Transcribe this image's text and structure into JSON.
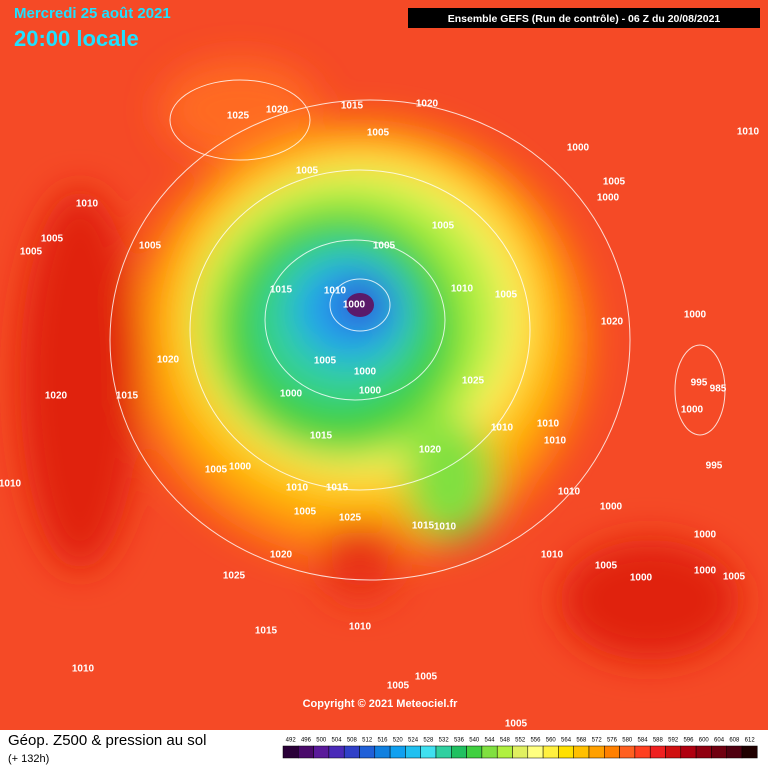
{
  "header": {
    "date": "Mercredi 25 août 2021",
    "time": "20:00 locale",
    "run": "Ensemble GEFS  (Run de contrôle)  -  06 Z du 20/08/2021"
  },
  "copyright": "Copyright © 2021 Meteociel.fr",
  "footer": {
    "title": "Géop. Z500 & pression au sol",
    "lead": "(+ 132h)"
  },
  "legend": {
    "values": [
      492,
      496,
      500,
      504,
      508,
      512,
      516,
      520,
      524,
      528,
      532,
      536,
      540,
      544,
      548,
      552,
      556,
      560,
      564,
      568,
      572,
      576,
      580,
      584,
      588,
      592,
      596,
      600,
      604,
      608,
      612
    ],
    "colors": [
      "#2a0038",
      "#4a0a6a",
      "#5a1a9a",
      "#4a2ab8",
      "#3040c8",
      "#2060d8",
      "#1080e0",
      "#10a0f0",
      "#20c0f0",
      "#40e0f0",
      "#30d0a0",
      "#20c060",
      "#40d040",
      "#80e040",
      "#b0f040",
      "#e0f060",
      "#ffff80",
      "#fff040",
      "#ffe000",
      "#ffc000",
      "#ffa000",
      "#ff8000",
      "#ff6020",
      "#ff4020",
      "#f02020",
      "#d01010",
      "#b00010",
      "#900010",
      "#700010",
      "#500010",
      "#200000"
    ]
  },
  "isobars": [
    "1025",
    "1020",
    "1015",
    "1020",
    "1005",
    "1010",
    "1000",
    "1005",
    "1005",
    "1000",
    "1010",
    "1005",
    "1005",
    "1005",
    "1005",
    "1005",
    "1015",
    "1010",
    "1010",
    "1005",
    "1000",
    "1020",
    "1000",
    "1020",
    "1005",
    "1000",
    "1025",
    "995",
    "985",
    "1000",
    "1000",
    "1020",
    "1015",
    "1000",
    "1010",
    "1015",
    "1010",
    "1010",
    "1020",
    "995",
    "1005",
    "1000",
    "1010",
    "1010",
    "1015",
    "1010",
    "1005",
    "1025",
    "1015",
    "1010",
    "1000",
    "1000",
    "1020",
    "1010",
    "1005",
    "1000",
    "1000",
    "1005",
    "1025",
    "1015",
    "1010",
    "1010",
    "1005",
    "1005",
    "1005"
  ]
}
